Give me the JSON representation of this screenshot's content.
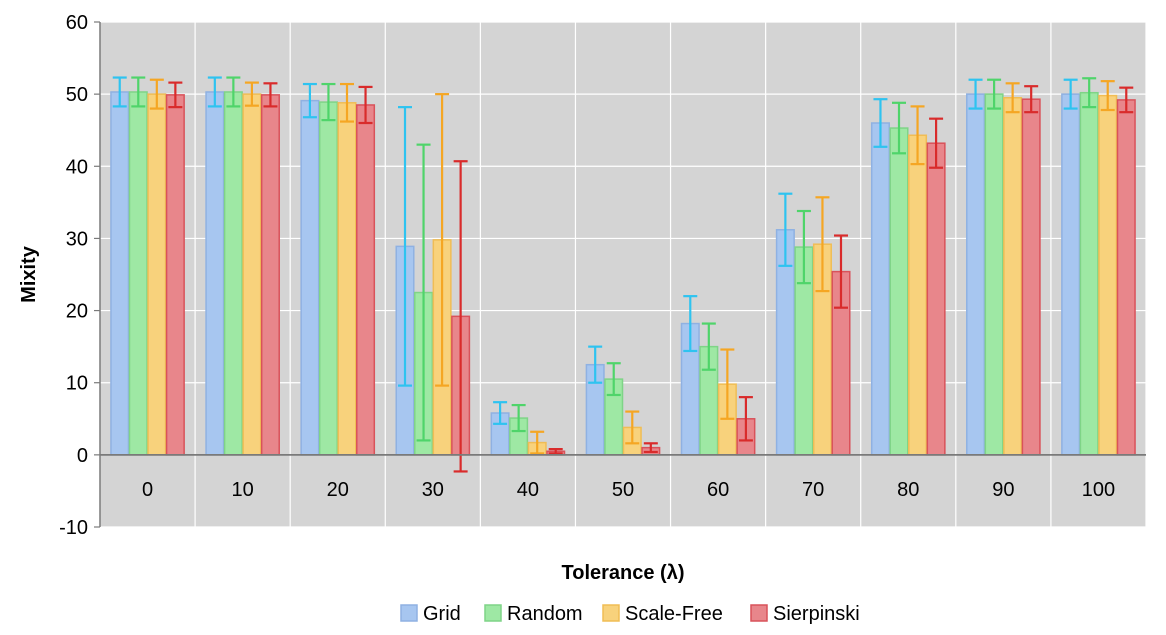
{
  "chart_data": {
    "type": "bar",
    "title": "",
    "xlabel": "Tolerance (λ)",
    "ylabel": "Mixity",
    "ylim": [
      -10,
      60
    ],
    "yticks": [
      "-10",
      "0",
      "10",
      "20",
      "30",
      "40",
      "50",
      "60"
    ],
    "categories": [
      "0",
      "10",
      "20",
      "30",
      "40",
      "50",
      "60",
      "70",
      "80",
      "90",
      "100"
    ],
    "grid": true,
    "legend_position": "bottom",
    "plot_background": "#d4d4d4",
    "series": [
      {
        "name": "Grid",
        "fill": "#a7c6f0",
        "stroke": "#8fb1e2",
        "error_color": "#2ec3f0",
        "values": [
          50.3,
          50.3,
          49.1,
          28.9,
          5.8,
          12.5,
          18.2,
          31.2,
          46.0,
          50.0,
          50.0
        ],
        "errors": [
          2.0,
          2.0,
          2.3,
          19.3,
          1.5,
          2.5,
          3.8,
          5.0,
          3.3,
          2.0,
          2.0
        ]
      },
      {
        "name": "Random",
        "fill": "#9ee8a4",
        "stroke": "#7fd487",
        "error_color": "#4fd46a",
        "values": [
          50.3,
          50.3,
          48.9,
          22.5,
          5.1,
          10.5,
          15.0,
          28.8,
          45.3,
          50.0,
          50.2
        ],
        "errors": [
          2.0,
          2.0,
          2.5,
          20.5,
          1.8,
          2.2,
          3.2,
          5.0,
          3.5,
          2.0,
          2.0
        ]
      },
      {
        "name": "Scale-Free",
        "fill": "#f8d27c",
        "stroke": "#f0bd55",
        "error_color": "#f5a623",
        "values": [
          50.0,
          50.0,
          48.8,
          29.8,
          1.7,
          3.8,
          9.8,
          29.2,
          44.3,
          49.5,
          49.8
        ],
        "errors": [
          2.0,
          1.6,
          2.6,
          20.2,
          1.5,
          2.2,
          4.8,
          6.5,
          4.0,
          2.0,
          2.0
        ]
      },
      {
        "name": "Sierpinski",
        "fill": "#e8868b",
        "stroke": "#d9525a",
        "error_color": "#d92b2b",
        "values": [
          49.9,
          49.9,
          48.5,
          19.2,
          0.5,
          1.0,
          5.0,
          25.4,
          43.2,
          49.3,
          49.2
        ],
        "errors": [
          1.7,
          1.6,
          2.5,
          21.5,
          0.3,
          0.6,
          3.0,
          5.0,
          3.4,
          1.8,
          1.7
        ]
      }
    ]
  }
}
